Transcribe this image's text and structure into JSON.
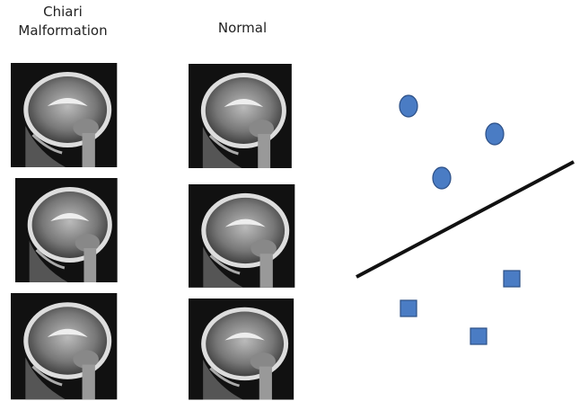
{
  "columns": [
    {
      "label": "Chiari Malformation"
    },
    {
      "label": "Normal"
    }
  ]
}
